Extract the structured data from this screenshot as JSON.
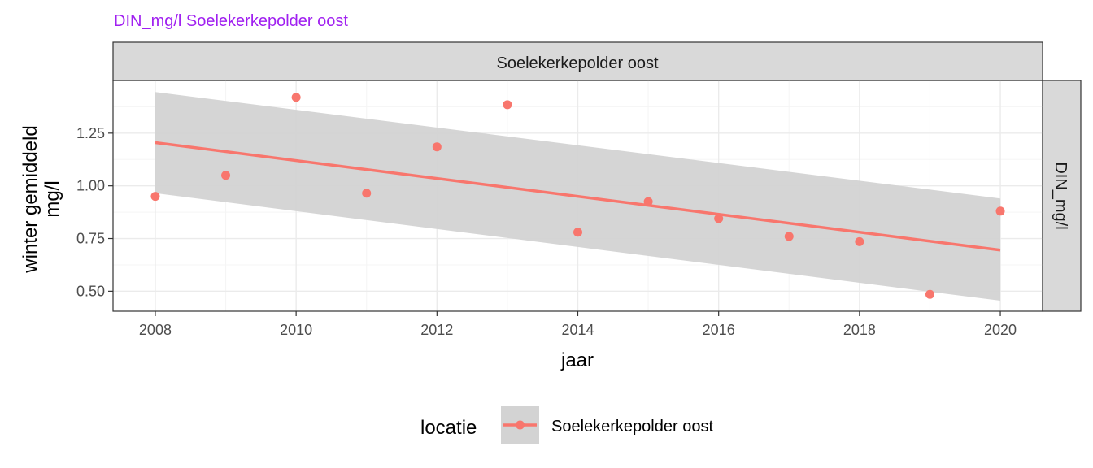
{
  "title": "DIN_mg/l Soelekerkepolder oost",
  "colors": {
    "title": "#a020f0",
    "series": "#f8766d",
    "ribbon": "#d3d3d3",
    "strip": "#d9d9d9",
    "grid_major": "#ebebeb",
    "grid_minor": "#f5f5f5"
  },
  "chart_data": {
    "type": "scatter",
    "title": "DIN_mg/l Soelekerkepolder oost",
    "facet_column_label": "Soelekerkepolder oost",
    "facet_row_label": "DIN_mg/l",
    "xlabel": "jaar",
    "ylabel_lines": [
      "winter gemiddeld",
      "mg/l"
    ],
    "x_ticks": [
      2008,
      2010,
      2012,
      2014,
      2016,
      2018,
      2020
    ],
    "y_ticks": [
      0.5,
      0.75,
      1.0,
      1.25
    ],
    "y_tick_labels": [
      "0.50",
      "0.75",
      "1.00",
      "1.25"
    ],
    "xlim": [
      2007.4,
      2020.6
    ],
    "ylim": [
      0.405,
      1.5
    ],
    "grid": true,
    "series": [
      {
        "name": "Soelekerkepolder oost",
        "x": [
          2008,
          2009,
          2010,
          2011,
          2012,
          2013,
          2014,
          2015,
          2016,
          2017,
          2018,
          2019,
          2020
        ],
        "values": [
          0.95,
          1.05,
          1.42,
          0.965,
          1.185,
          1.385,
          0.78,
          0.925,
          0.845,
          0.76,
          0.735,
          0.485,
          0.88
        ]
      }
    ],
    "trend": {
      "type": "linear",
      "x": [
        2008,
        2020
      ],
      "y": [
        1.205,
        0.695
      ],
      "ci_lower": [
        0.965,
        0.455
      ],
      "ci_upper": [
        1.445,
        0.94
      ]
    },
    "legend": {
      "title": "locatie",
      "position": "bottom",
      "items": [
        "Soelekerkepolder oost"
      ]
    }
  }
}
